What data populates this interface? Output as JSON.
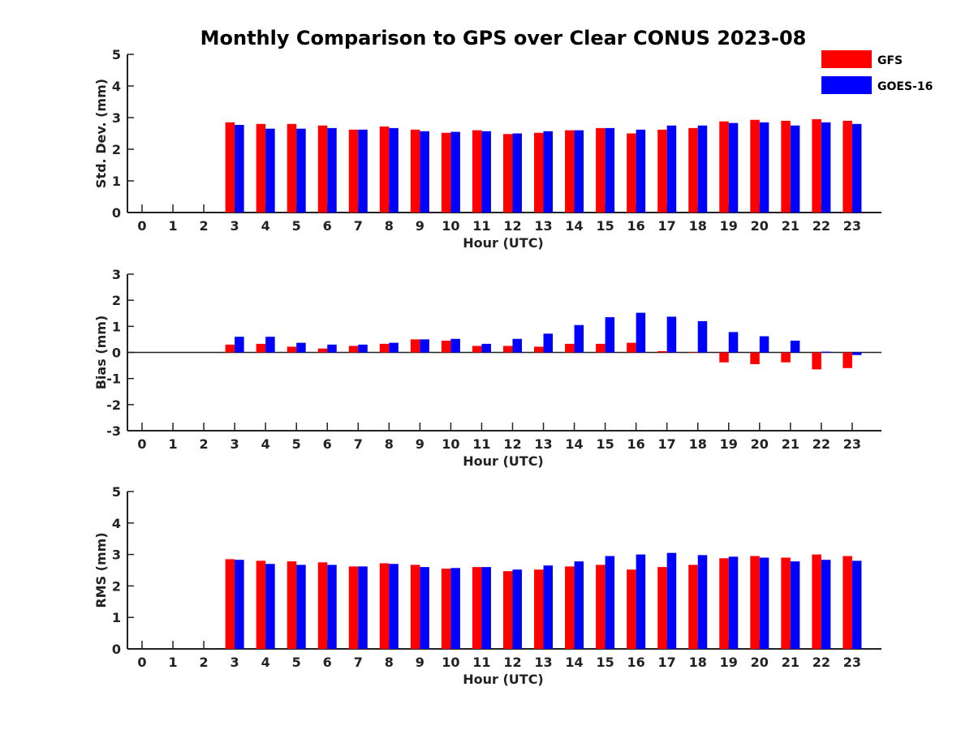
{
  "title": "Monthly Comparison to GPS over Clear CONUS 2023-08",
  "legend": {
    "placement": "top-right",
    "items": [
      {
        "name": "GFS",
        "color": "#ff0000"
      },
      {
        "name": "GOES-16",
        "color": "#0000ff"
      }
    ]
  },
  "chart_data": [
    {
      "type": "bar",
      "ylabel": "Std. Dev. (mm)",
      "xlabel": "Hour (UTC)",
      "ylim": [
        0,
        5
      ],
      "yticks": [
        0,
        1,
        2,
        3,
        4,
        5
      ],
      "categories": [
        "0",
        "1",
        "2",
        "3",
        "4",
        "5",
        "6",
        "7",
        "8",
        "9",
        "10",
        "11",
        "12",
        "13",
        "14",
        "15",
        "16",
        "17",
        "18",
        "19",
        "20",
        "21",
        "22",
        "23"
      ],
      "series": [
        {
          "name": "GFS",
          "color": "#ff0000",
          "values": [
            null,
            null,
            null,
            2.85,
            2.8,
            2.8,
            2.75,
            2.62,
            2.72,
            2.62,
            2.52,
            2.6,
            2.48,
            2.52,
            2.6,
            2.67,
            2.5,
            2.62,
            2.67,
            2.88,
            2.93,
            2.9,
            2.95,
            2.9
          ]
        },
        {
          "name": "GOES-16",
          "color": "#0000ff",
          "values": [
            null,
            null,
            null,
            2.77,
            2.65,
            2.65,
            2.67,
            2.62,
            2.67,
            2.57,
            2.55,
            2.57,
            2.5,
            2.57,
            2.6,
            2.67,
            2.62,
            2.75,
            2.75,
            2.83,
            2.85,
            2.75,
            2.85,
            2.8
          ]
        }
      ]
    },
    {
      "type": "bar",
      "ylabel": "Bias (mm)",
      "xlabel": "Hour (UTC)",
      "ylim": [
        -3,
        3
      ],
      "yticks": [
        -3,
        -2,
        -1,
        0,
        1,
        2,
        3
      ],
      "zero_line": true,
      "categories": [
        "0",
        "1",
        "2",
        "3",
        "4",
        "5",
        "6",
        "7",
        "8",
        "9",
        "10",
        "11",
        "12",
        "13",
        "14",
        "15",
        "16",
        "17",
        "18",
        "19",
        "20",
        "21",
        "22",
        "23"
      ],
      "series": [
        {
          "name": "GFS",
          "color": "#ff0000",
          "values": [
            null,
            null,
            null,
            0.3,
            0.33,
            0.22,
            0.15,
            0.25,
            0.33,
            0.5,
            0.45,
            0.25,
            0.25,
            0.22,
            0.33,
            0.33,
            0.37,
            0.05,
            0.0,
            -0.38,
            -0.45,
            -0.38,
            -0.65,
            -0.6
          ]
        },
        {
          "name": "GOES-16",
          "color": "#0000ff",
          "values": [
            null,
            null,
            null,
            0.6,
            0.6,
            0.37,
            0.3,
            0.3,
            0.37,
            0.5,
            0.52,
            0.33,
            0.52,
            0.72,
            1.05,
            1.35,
            1.52,
            1.37,
            1.2,
            0.78,
            0.62,
            0.45,
            0.03,
            -0.1
          ]
        }
      ]
    },
    {
      "type": "bar",
      "ylabel": "RMS (mm)",
      "xlabel": "Hour (UTC)",
      "ylim": [
        0,
        5
      ],
      "yticks": [
        0,
        1,
        2,
        3,
        4,
        5
      ],
      "categories": [
        "0",
        "1",
        "2",
        "3",
        "4",
        "5",
        "6",
        "7",
        "8",
        "9",
        "10",
        "11",
        "12",
        "13",
        "14",
        "15",
        "16",
        "17",
        "18",
        "19",
        "20",
        "21",
        "22",
        "23"
      ],
      "series": [
        {
          "name": "GFS",
          "color": "#ff0000",
          "values": [
            null,
            null,
            null,
            2.85,
            2.8,
            2.78,
            2.75,
            2.62,
            2.72,
            2.67,
            2.55,
            2.6,
            2.47,
            2.52,
            2.62,
            2.67,
            2.52,
            2.6,
            2.67,
            2.88,
            2.95,
            2.9,
            3.0,
            2.95
          ]
        },
        {
          "name": "GOES-16",
          "color": "#0000ff",
          "values": [
            null,
            null,
            null,
            2.83,
            2.7,
            2.67,
            2.67,
            2.62,
            2.7,
            2.6,
            2.57,
            2.6,
            2.52,
            2.65,
            2.78,
            2.95,
            3.0,
            3.05,
            2.98,
            2.93,
            2.9,
            2.78,
            2.83,
            2.8
          ]
        }
      ]
    }
  ]
}
